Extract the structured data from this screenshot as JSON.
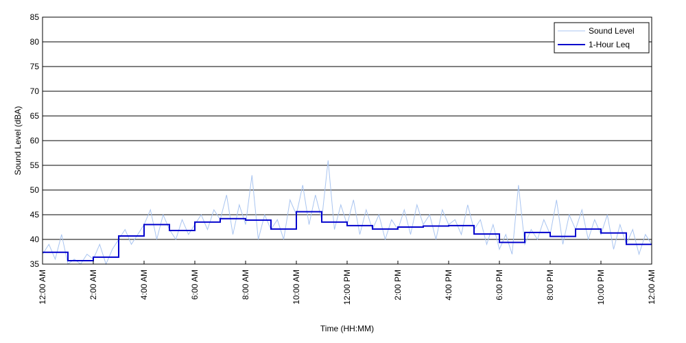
{
  "chart_data": {
    "type": "line",
    "title": "",
    "xlabel": "Time (HH:MM)",
    "ylabel": "Sound Level (dBA)",
    "ylim": [
      35,
      85
    ],
    "xlim_hours": [
      0,
      24
    ],
    "yticks": [
      35,
      40,
      45,
      50,
      55,
      60,
      65,
      70,
      75,
      80,
      85
    ],
    "xticks": [
      {
        "hour": 0,
        "label": "12:00 AM"
      },
      {
        "hour": 2,
        "label": "2:00 AM"
      },
      {
        "hour": 4,
        "label": "4:00 AM"
      },
      {
        "hour": 6,
        "label": "6:00 AM"
      },
      {
        "hour": 8,
        "label": "8:00 AM"
      },
      {
        "hour": 10,
        "label": "10:00 AM"
      },
      {
        "hour": 12,
        "label": "12:00 PM"
      },
      {
        "hour": 14,
        "label": "2:00 PM"
      },
      {
        "hour": 16,
        "label": "4:00 PM"
      },
      {
        "hour": 18,
        "label": "6:00 PM"
      },
      {
        "hour": 20,
        "label": "8:00 PM"
      },
      {
        "hour": 22,
        "label": "10:00 PM"
      },
      {
        "hour": 24,
        "label": "12:00 AM"
      }
    ],
    "grid": "horizontal",
    "legend_position": "top-right",
    "series": [
      {
        "name": "Sound Level",
        "color": "#a8c4f0",
        "style": "thin-line",
        "x_hours": [
          0.0,
          0.25,
          0.5,
          0.75,
          1.0,
          1.25,
          1.5,
          1.75,
          2.0,
          2.25,
          2.5,
          2.75,
          3.0,
          3.25,
          3.5,
          3.75,
          4.0,
          4.25,
          4.5,
          4.75,
          5.0,
          5.25,
          5.5,
          5.75,
          6.0,
          6.25,
          6.5,
          6.75,
          7.0,
          7.25,
          7.5,
          7.75,
          8.0,
          8.25,
          8.5,
          8.75,
          9.0,
          9.25,
          9.5,
          9.75,
          10.0,
          10.25,
          10.5,
          10.75,
          11.0,
          11.25,
          11.5,
          11.75,
          12.0,
          12.25,
          12.5,
          12.75,
          13.0,
          13.25,
          13.5,
          13.75,
          14.0,
          14.25,
          14.5,
          14.75,
          15.0,
          15.25,
          15.5,
          15.75,
          16.0,
          16.25,
          16.5,
          16.75,
          17.0,
          17.25,
          17.5,
          17.75,
          18.0,
          18.25,
          18.5,
          18.75,
          19.0,
          19.25,
          19.5,
          19.75,
          20.0,
          20.25,
          20.5,
          20.75,
          21.0,
          21.25,
          21.5,
          21.75,
          22.0,
          22.25,
          22.5,
          22.75,
          23.0,
          23.25,
          23.5,
          23.75,
          24.0
        ],
        "values": [
          37,
          39,
          36,
          41,
          35,
          36,
          35,
          37,
          36,
          39,
          35,
          38,
          40,
          42,
          39,
          41,
          43,
          46,
          40,
          45,
          42,
          40,
          44,
          41,
          43,
          45,
          42,
          46,
          44,
          49,
          41,
          47,
          43,
          53,
          40,
          45,
          42,
          44,
          40,
          48,
          45,
          51,
          43,
          49,
          44,
          56,
          42,
          47,
          43,
          48,
          41,
          46,
          42,
          45,
          40,
          44,
          42,
          46,
          41,
          47,
          43,
          45,
          40,
          46,
          43,
          44,
          41,
          47,
          42,
          44,
          39,
          43,
          38,
          41,
          37,
          51,
          39,
          42,
          40,
          44,
          41,
          48,
          39,
          45,
          42,
          46,
          40,
          44,
          41,
          45,
          38,
          43,
          39,
          42,
          37,
          41,
          39
        ]
      },
      {
        "name": "1-Hour Leq",
        "color": "#0000cc",
        "style": "step",
        "hour_start": [
          0,
          1,
          2,
          3,
          4,
          5,
          6,
          7,
          8,
          9,
          10,
          11,
          12,
          13,
          14,
          15,
          16,
          17,
          18,
          19,
          20,
          21,
          22,
          23
        ],
        "values": [
          37.4,
          35.7,
          36.4,
          40.7,
          43.0,
          41.8,
          43.5,
          44.2,
          43.9,
          42.1,
          45.6,
          43.5,
          42.8,
          42.1,
          42.5,
          42.7,
          42.8,
          41.1,
          39.4,
          41.4,
          40.6,
          42.1,
          41.3,
          39.0
        ]
      }
    ]
  }
}
